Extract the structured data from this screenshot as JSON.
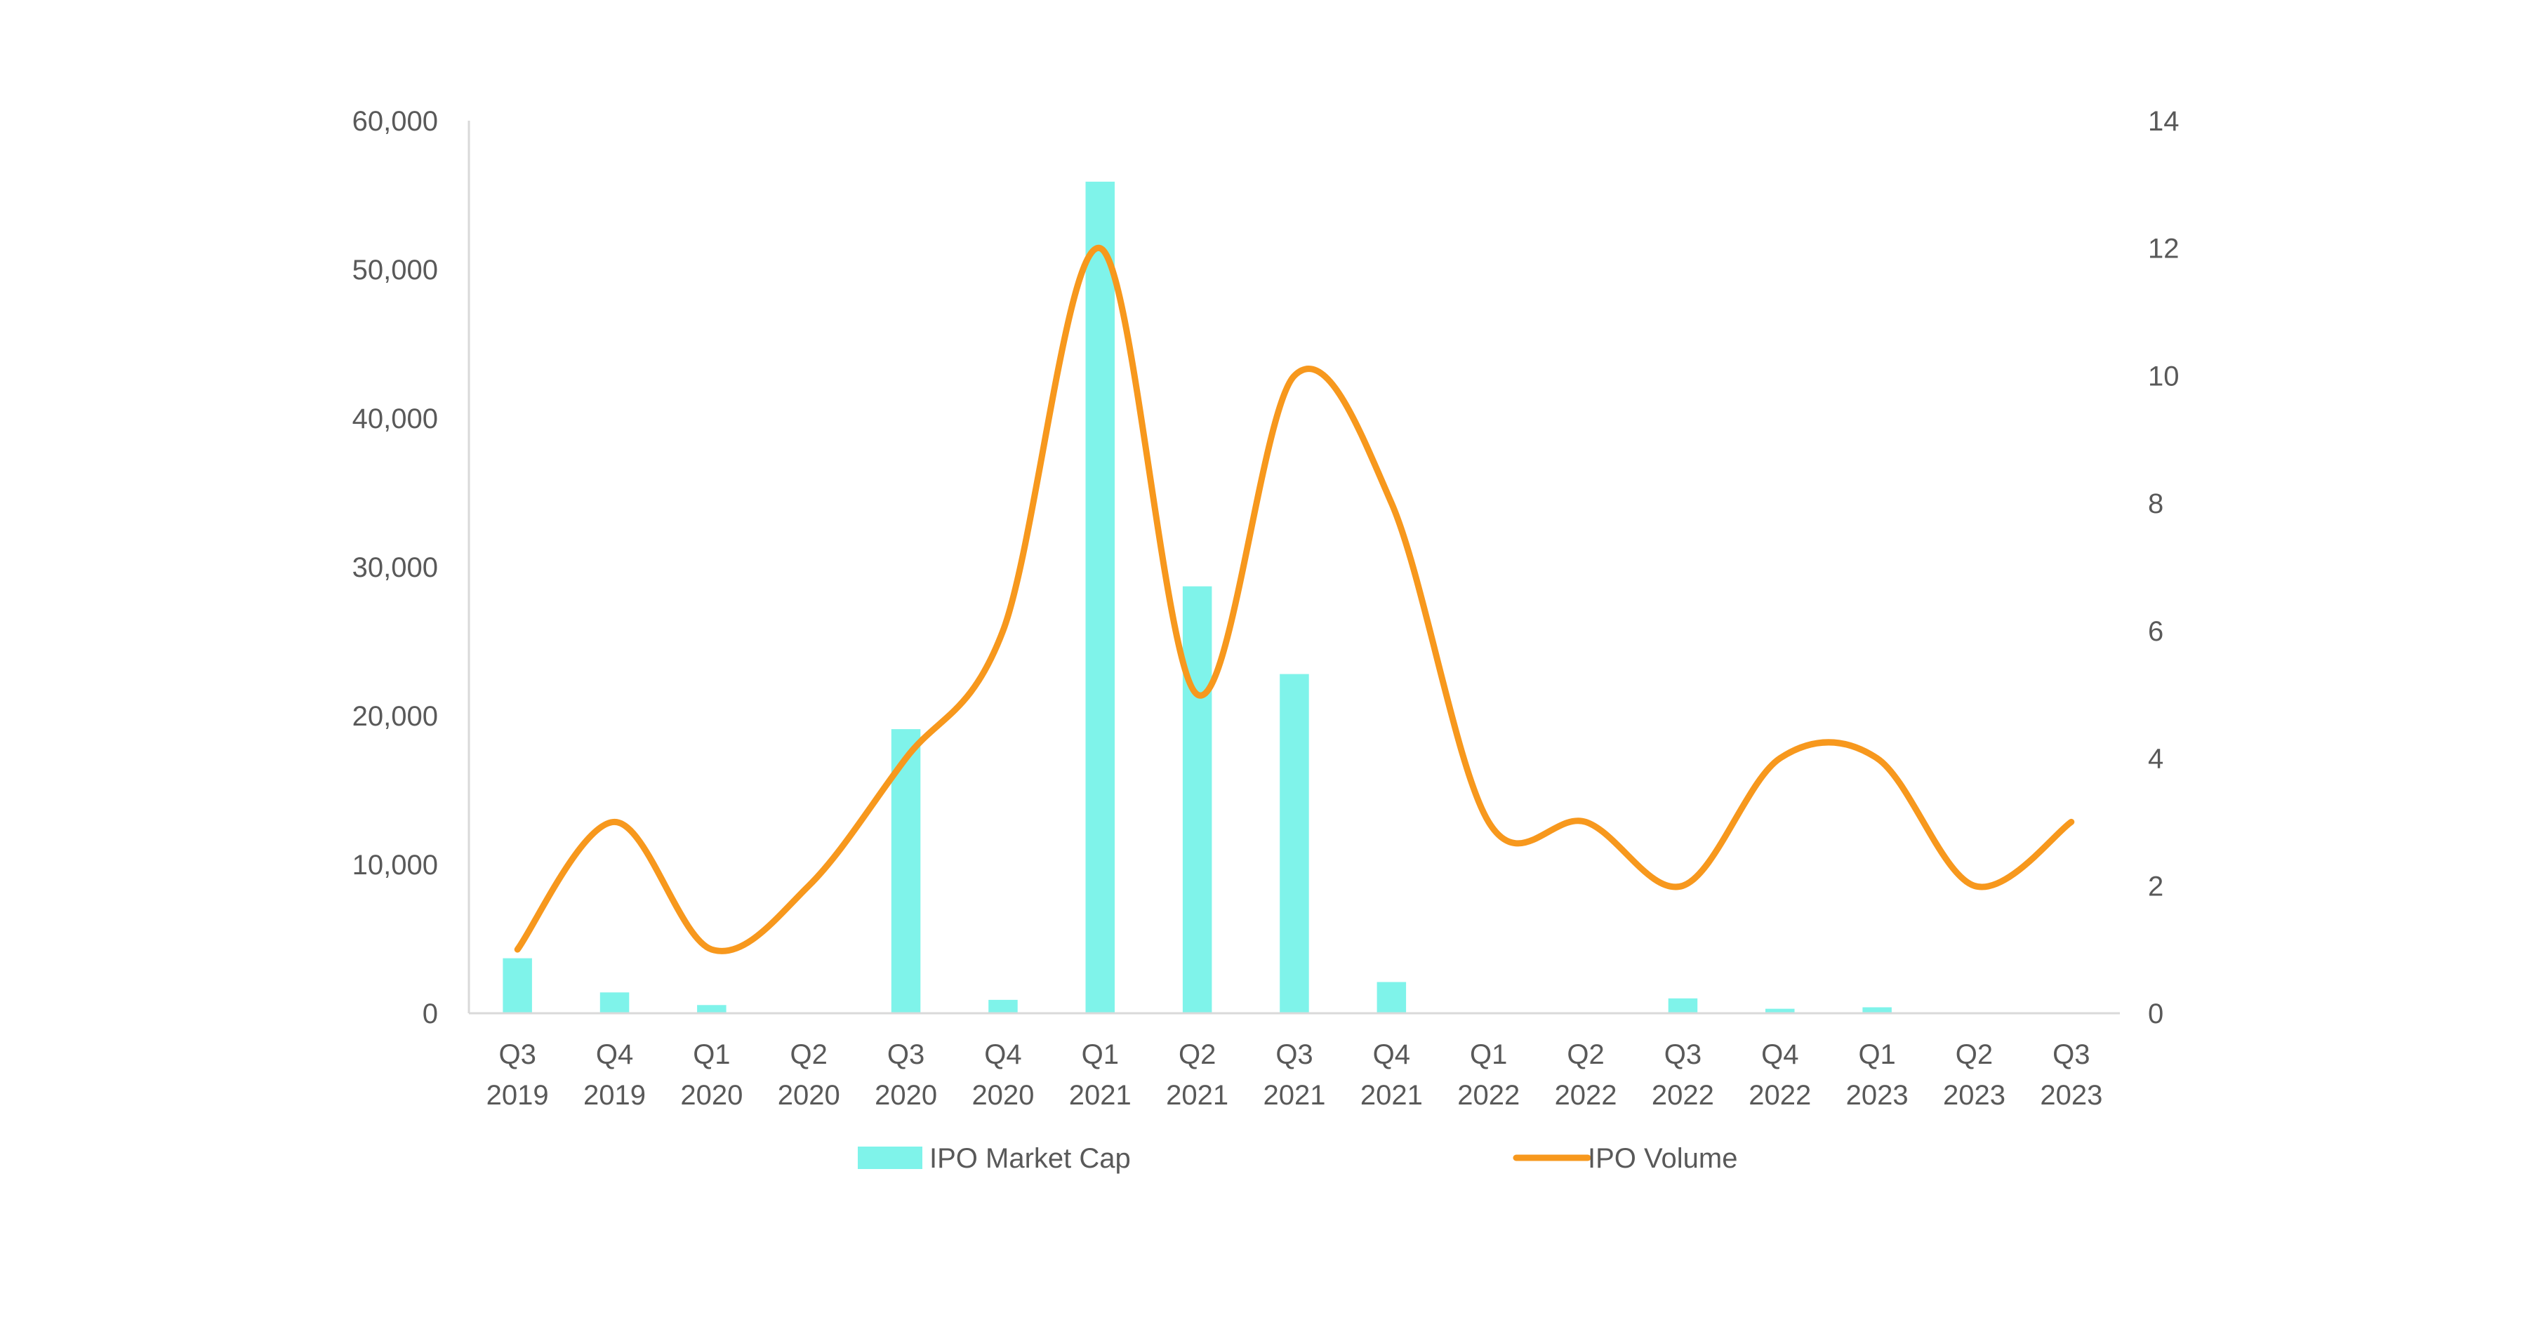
{
  "chart_data": {
    "type": "bar",
    "title": "",
    "xlabel": "",
    "ylabel": "",
    "categories": [
      [
        "Q3",
        "2019"
      ],
      [
        "Q4",
        "2019"
      ],
      [
        "Q1",
        "2020"
      ],
      [
        "Q2",
        "2020"
      ],
      [
        "Q3",
        "2020"
      ],
      [
        "Q4",
        "2020"
      ],
      [
        "Q1",
        "2021"
      ],
      [
        "Q2",
        "2021"
      ],
      [
        "Q3",
        "2021"
      ],
      [
        "Q4",
        "2021"
      ],
      [
        "Q1",
        "2022"
      ],
      [
        "Q2",
        "2022"
      ],
      [
        "Q3",
        "2022"
      ],
      [
        "Q4",
        "2022"
      ],
      [
        "Q1",
        "2023"
      ],
      [
        "Q2",
        "2023"
      ],
      [
        "Q3",
        "2023"
      ]
    ],
    "series": [
      {
        "name": "IPO Market Cap",
        "type": "bar",
        "axis": "left",
        "color": "#7FF3EA",
        "values": [
          3700,
          1400,
          550,
          0,
          19100,
          900,
          55900,
          28700,
          22800,
          2100,
          0,
          0,
          1000,
          300,
          400,
          0,
          0
        ]
      },
      {
        "name": "IPO Volume",
        "type": "line",
        "smooth": true,
        "axis": "right",
        "color": "#F7981D",
        "values": [
          1,
          3,
          1,
          2,
          4,
          6,
          12,
          5,
          10,
          8,
          3,
          3,
          2,
          4,
          4,
          2,
          3
        ]
      }
    ],
    "y_left": {
      "range": [
        0,
        60000
      ],
      "ticks": [
        0,
        10000,
        20000,
        30000,
        40000,
        50000,
        60000
      ],
      "tick_labels": [
        "0",
        "10,000",
        "20,000",
        "30,000",
        "40,000",
        "50,000",
        "60,000"
      ]
    },
    "y_right": {
      "range": [
        0,
        14
      ],
      "ticks": [
        0,
        2,
        4,
        6,
        8,
        10,
        12,
        14
      ],
      "tick_labels": [
        "0",
        "2",
        "4",
        "6",
        "8",
        "10",
        "12",
        "14"
      ]
    },
    "grid": false,
    "legend": {
      "position": "bottom",
      "entries": [
        "IPO Market Cap",
        "IPO Volume"
      ]
    }
  }
}
